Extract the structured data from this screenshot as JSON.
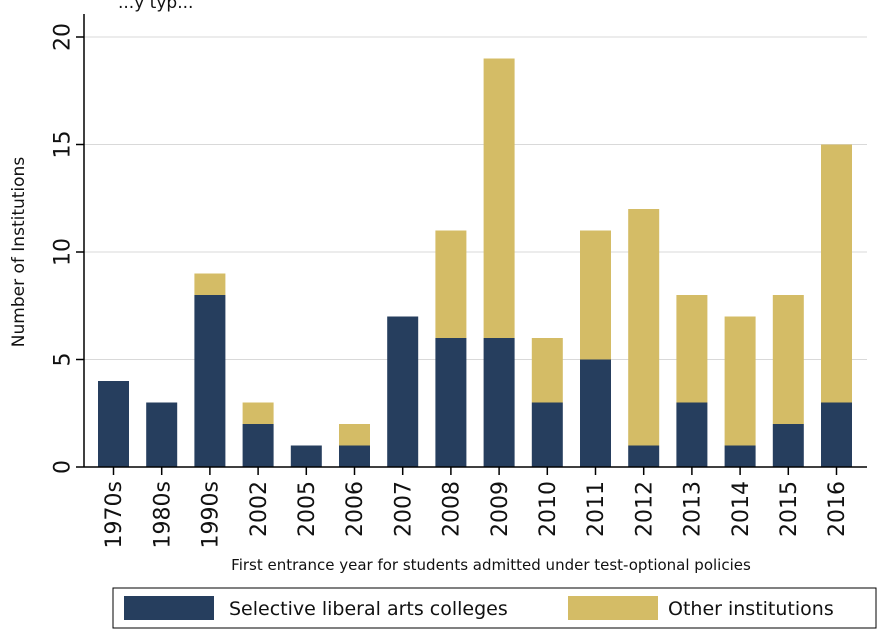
{
  "chart_data": {
    "type": "bar",
    "stacked": true,
    "title": "",
    "top_fragment": "...y typ...",
    "xlabel": "First entrance year for students admitted under test-optional policies",
    "ylabel": "Number of Institutions",
    "ylim": [
      0,
      20
    ],
    "yticks": [
      0,
      5,
      10,
      15,
      20
    ],
    "grid": "horizontal",
    "legend_placement": "bottom",
    "categories": [
      "1970s",
      "1980s",
      "1990s",
      "2002",
      "2005",
      "2006",
      "2007",
      "2008",
      "2009",
      "2010",
      "2011",
      "2012",
      "2013",
      "2014",
      "2015",
      "2016"
    ],
    "series": [
      {
        "name": "Selective liberal arts colleges",
        "color": "#263e5e",
        "values": [
          4,
          3,
          8,
          2,
          1,
          1,
          7,
          6,
          6,
          3,
          5,
          1,
          3,
          1,
          2,
          3
        ]
      },
      {
        "name": "Other institutions",
        "color": "#d4bc66",
        "values": [
          0,
          0,
          1,
          1,
          0,
          1,
          0,
          5,
          13,
          3,
          6,
          11,
          5,
          6,
          6,
          12
        ]
      }
    ]
  }
}
